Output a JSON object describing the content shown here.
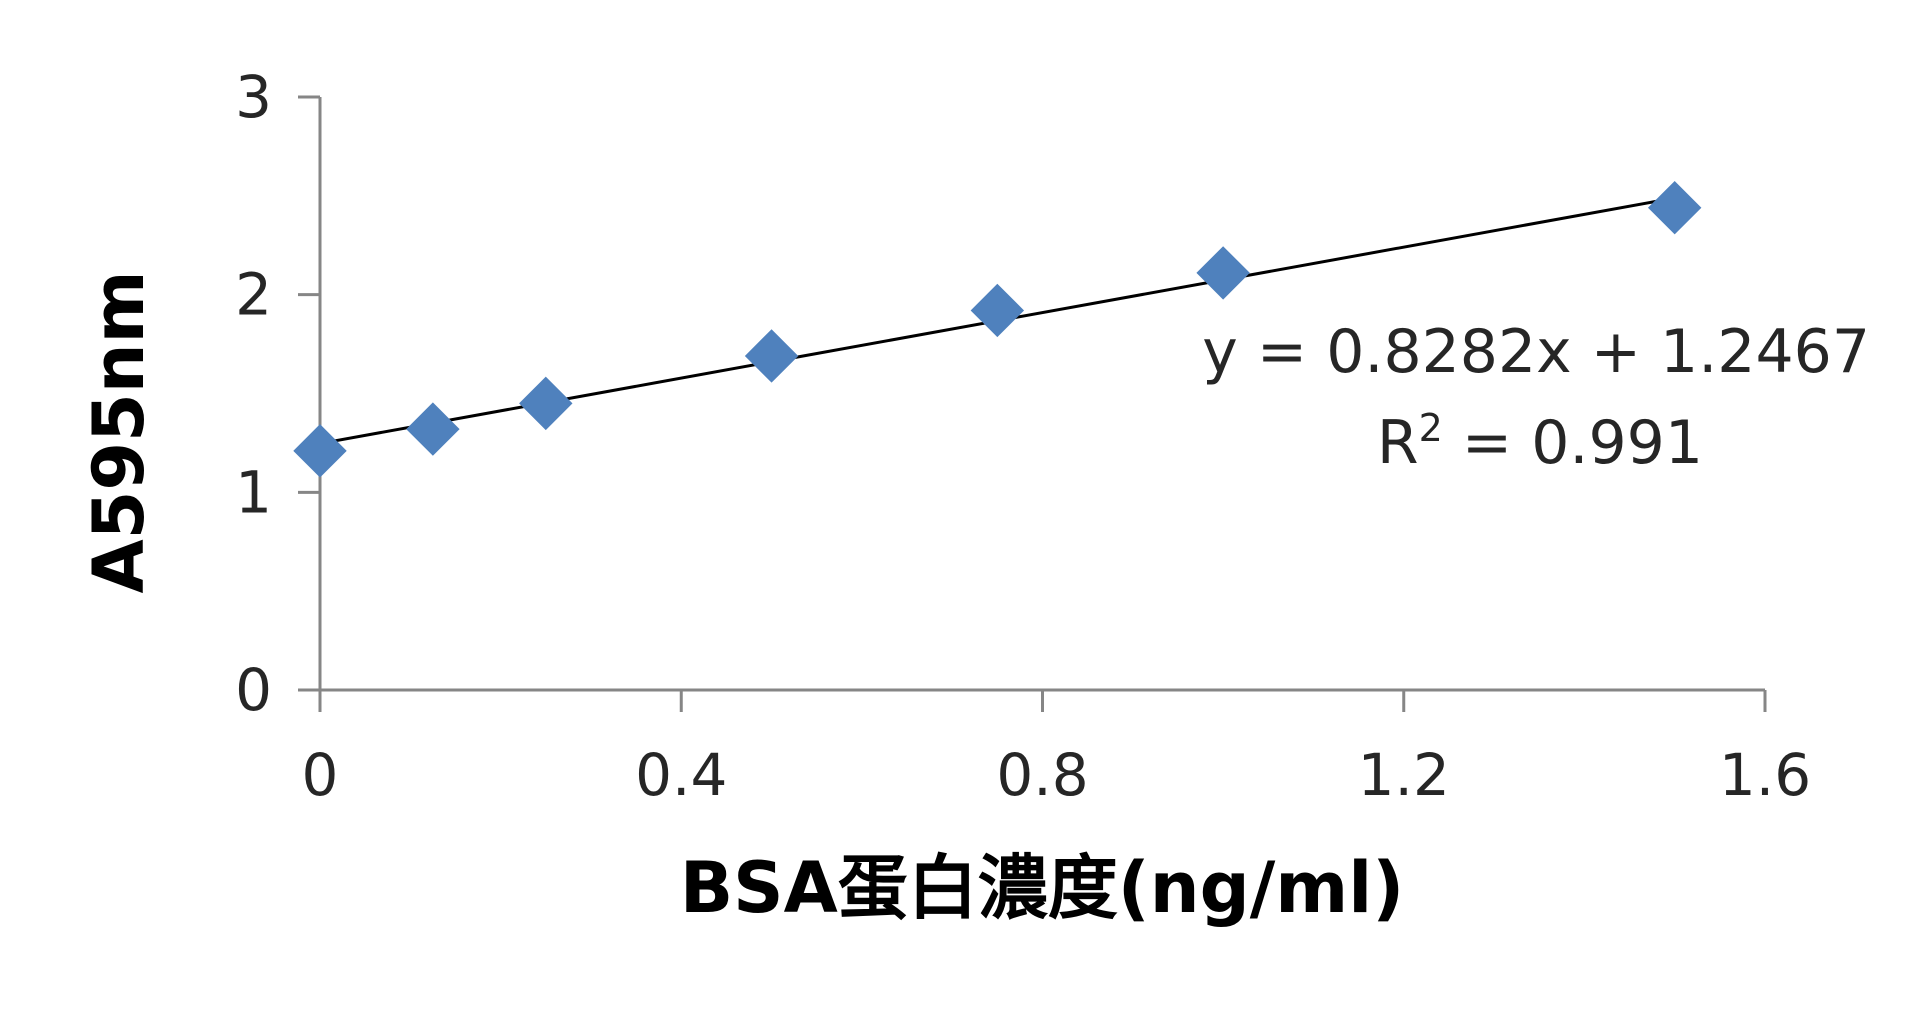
{
  "chart_data": {
    "type": "scatter",
    "title": "",
    "xlabel": "BSA蛋白濃度(ng/ml)",
    "ylabel": "A595nm",
    "xlim": [
      0,
      1.6
    ],
    "ylim": [
      0,
      3
    ],
    "x_ticks": [
      "0",
      "0.4",
      "0.8",
      "1.2",
      "1.6"
    ],
    "y_ticks": [
      "0",
      "1",
      "2",
      "3"
    ],
    "grid": false,
    "legend": "none",
    "series": [
      {
        "marker": "diamond",
        "color": "#4F81BD",
        "points": [
          {
            "x": 0,
            "y": 1.21
          },
          {
            "x": 0.125,
            "y": 1.32
          },
          {
            "x": 0.25,
            "y": 1.45
          },
          {
            "x": 0.5,
            "y": 1.69
          },
          {
            "x": 0.75,
            "y": 1.92
          },
          {
            "x": 1.0,
            "y": 2.11
          },
          {
            "x": 1.5,
            "y": 2.44
          }
        ]
      }
    ],
    "trendline": {
      "type": "linear",
      "slope": 0.8282,
      "intercept": 1.2467,
      "color": "#000000"
    },
    "annotations": {
      "equation": "y = 0.8282x + 1.2467",
      "r2_prefix": "R",
      "r2_sup": "2",
      "r2_value": " = 0.991"
    },
    "colors": {
      "axis": "#868686",
      "marker": "#4F81BD",
      "trendline": "#000000"
    }
  }
}
